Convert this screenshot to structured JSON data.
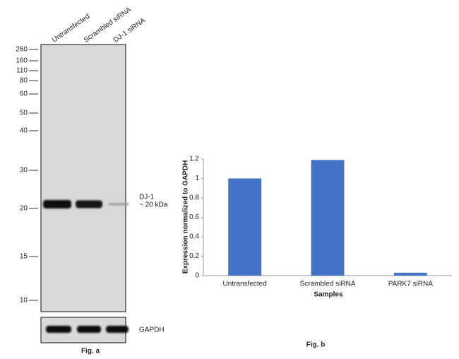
{
  "blot": {
    "lanes": [
      "Untransfected",
      "Scrambled siRNA",
      "DJ-1 siRNA"
    ],
    "markers": [
      260,
      160,
      110,
      80,
      60,
      50,
      40,
      30,
      20,
      15,
      10
    ],
    "band_label": [
      "DJ-1",
      "~ 20 kDa"
    ],
    "loading_control": "GAPDH",
    "caption": "Fig. a"
  },
  "chart_data": {
    "type": "bar",
    "caption": "Fig. b",
    "x_label": "Samples",
    "y_label": "Expression normalized to GAPDH",
    "categories": [
      "Untransfected",
      "Scrambled siRNA",
      "PARK7 siRNA"
    ],
    "values": [
      1.0,
      1.19,
      0.03
    ],
    "color": "#4472c4",
    "ylim": [
      0,
      1.2
    ],
    "yticks": [
      0,
      0.2,
      0.4,
      0.6,
      0.8,
      1,
      1.2
    ]
  }
}
